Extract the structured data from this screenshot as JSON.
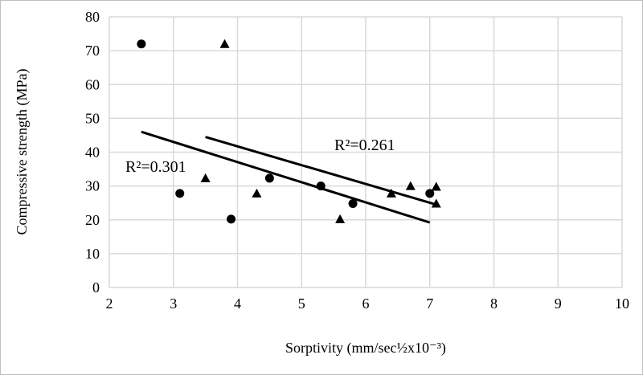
{
  "chart_data": {
    "type": "scatter",
    "title": "",
    "xlabel": "Sorptivity (mm/sec½x10⁻³)",
    "ylabel": "Compressive strength (MPa)",
    "xlim": [
      2,
      10
    ],
    "ylim": [
      0,
      80
    ],
    "xticks": [
      2,
      3,
      4,
      5,
      6,
      7,
      8,
      9,
      10
    ],
    "yticks": [
      0,
      10,
      20,
      30,
      40,
      50,
      60,
      70,
      80
    ],
    "grid": true,
    "series": [
      {
        "marker": "circle",
        "color": "#000000",
        "x": [
          2.5,
          3.1,
          3.9,
          4.5,
          5.3,
          5.8,
          7.0
        ],
        "y": [
          72,
          27.8,
          20.2,
          32.3,
          30,
          24.8,
          27.8
        ],
        "trendline": {
          "x": [
            2.5,
            7.0
          ],
          "y": [
            46,
            19.2
          ]
        },
        "annotation": "R²=0.301"
      },
      {
        "marker": "triangle",
        "color": "#000000",
        "x": [
          3.5,
          3.8,
          4.3,
          5.6,
          6.4,
          6.7,
          7.1,
          7.1
        ],
        "y": [
          32.3,
          72,
          27.8,
          20.2,
          27.8,
          30,
          29.8,
          24.8
        ],
        "trendline": {
          "x": [
            3.5,
            7.1
          ],
          "y": [
            44.5,
            24.5
          ]
        },
        "annotation": "R²=0.261"
      }
    ],
    "gridColor": "#d9d9d9"
  }
}
